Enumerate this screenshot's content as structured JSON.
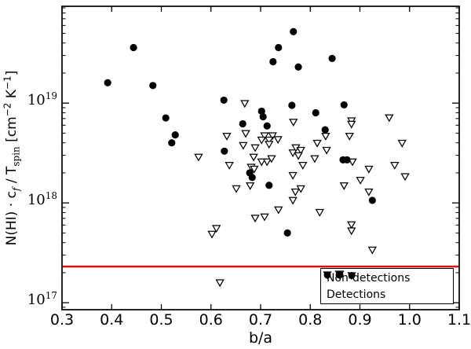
{
  "figure": {
    "background": "#ffffff"
  },
  "chart_data": {
    "type": "scatter",
    "xlabel": "b/a",
    "ylabel_plain": "N(HI) · c_f / T_spin [cm^-2 K^-1]",
    "ylabel_parts": {
      "p1": "N(HI) · c",
      "sub1": "f",
      "p2": " / T",
      "sub2": "spin",
      "p3": " [cm",
      "sup1": "−2",
      "p4": " K",
      "sup2": "−1",
      "p5": "]"
    },
    "x_axis": {
      "min": 0.3,
      "max": 1.1,
      "ticks": [
        0.3,
        0.4,
        0.5,
        0.6,
        0.7,
        0.8,
        0.9,
        1.0,
        1.1
      ]
    },
    "y_axis": {
      "scale": "log",
      "log_min": 16.93,
      "log_max": 19.97,
      "major_tick_exponents": [
        17,
        18,
        19
      ],
      "tick_base": "10"
    },
    "red_line": {
      "value": 2.3e+17,
      "color": "#dd1111"
    },
    "legend": {
      "position": "lower right",
      "non_detections": "Non-detections",
      "detections": "Detections"
    },
    "series": [
      {
        "name": "Non-detections",
        "marker": "triangle-down-open",
        "color": "#000000",
        "fill": "#ffffff",
        "points": [
          [
            0.668,
            1e+19
          ],
          [
            0.575,
            2.9e+18
          ],
          [
            0.632,
            4.7e+18
          ],
          [
            0.67,
            5e+18
          ],
          [
            0.665,
            3.8e+18
          ],
          [
            0.637,
            2.4e+18
          ],
          [
            0.651,
            1.4e+18
          ],
          [
            0.679,
            1.5e+18
          ],
          [
            0.689,
            3.6e+18
          ],
          [
            0.686,
            2.9e+18
          ],
          [
            0.702,
            2.6e+18
          ],
          [
            0.713,
            2.6e+18
          ],
          [
            0.722,
            2.8e+18
          ],
          [
            0.681,
            2.3e+18
          ],
          [
            0.687,
            2.2e+18
          ],
          [
            0.708,
            4.75e+18
          ],
          [
            0.724,
            4.75e+18
          ],
          [
            0.702,
            4.3e+18
          ],
          [
            0.717,
            4.3e+18
          ],
          [
            0.735,
            4.35e+18
          ],
          [
            0.717,
            3.9e+18
          ],
          [
            0.766,
            6.5e+18
          ],
          [
            0.765,
            3.2e+18
          ],
          [
            0.771,
            3.6e+18
          ],
          [
            0.781,
            3.4e+18
          ],
          [
            0.776,
            3e+18
          ],
          [
            0.785,
            2.4e+18
          ],
          [
            0.765,
            1.9e+18
          ],
          [
            0.77,
            1.3e+18
          ],
          [
            0.781,
            1.4e+18
          ],
          [
            0.765,
            1.07e+18
          ],
          [
            0.736,
            8.6e+17
          ],
          [
            0.689,
            7.1e+17
          ],
          [
            0.708,
            7.3e+17
          ],
          [
            0.602,
            4.9e+17
          ],
          [
            0.611,
            5.6e+17
          ],
          [
            0.618,
            1.6e+17
          ],
          [
            0.883,
            6.7e+18
          ],
          [
            0.883,
            6.2e+18
          ],
          [
            0.831,
            4.7e+18
          ],
          [
            0.879,
            4.7e+18
          ],
          [
            0.814,
            4e+18
          ],
          [
            0.833,
            3.4e+18
          ],
          [
            0.809,
            2.8e+18
          ],
          [
            0.885,
            2.6e+18
          ],
          [
            0.901,
            1.7e+18
          ],
          [
            0.959,
            7.2e+18
          ],
          [
            0.985,
            4e+18
          ],
          [
            0.97,
            2.4e+18
          ],
          [
            0.991,
            1.85e+18
          ],
          [
            0.868,
            1.5e+18
          ],
          [
            0.918,
            1.3e+18
          ],
          [
            0.883,
            6.1e+17
          ],
          [
            0.883,
            5.3e+17
          ],
          [
            0.925,
            3.4e+17
          ],
          [
            0.819,
            8.1e+17
          ],
          [
            0.918,
            2.2e+18
          ]
        ]
      },
      {
        "name": "Detections",
        "marker": "circle-filled",
        "color": "#000000",
        "fill": "#000000",
        "points": [
          [
            0.392,
            1.6e+19
          ],
          [
            0.444,
            3.6e+19
          ],
          [
            0.483,
            1.5e+19
          ],
          [
            0.509,
            7.1e+18
          ],
          [
            0.528,
            4.8e+18
          ],
          [
            0.521,
            4e+18
          ],
          [
            0.626,
            1.07e+19
          ],
          [
            0.627,
            3.3e+18
          ],
          [
            0.664,
            6.2e+18
          ],
          [
            0.702,
            8.3e+18
          ],
          [
            0.705,
            7.3e+18
          ],
          [
            0.713,
            5.9e+18
          ],
          [
            0.725,
            2.6e+19
          ],
          [
            0.736,
            3.6e+19
          ],
          [
            0.766,
            5.2e+19
          ],
          [
            0.763,
            9.5e+18
          ],
          [
            0.776,
            2.3e+19
          ],
          [
            0.678,
            2e+18
          ],
          [
            0.683,
            1.8e+18
          ],
          [
            0.717,
            1.5e+18
          ],
          [
            0.754,
            5e+17
          ],
          [
            0.811,
            8e+18
          ],
          [
            0.83,
            5.4e+18
          ],
          [
            0.844,
            2.8e+19
          ],
          [
            0.868,
            9.6e+18
          ],
          [
            0.866,
            2.7e+18
          ],
          [
            0.874,
            2.7e+18
          ],
          [
            0.925,
            1.06e+18
          ]
        ]
      }
    ]
  }
}
